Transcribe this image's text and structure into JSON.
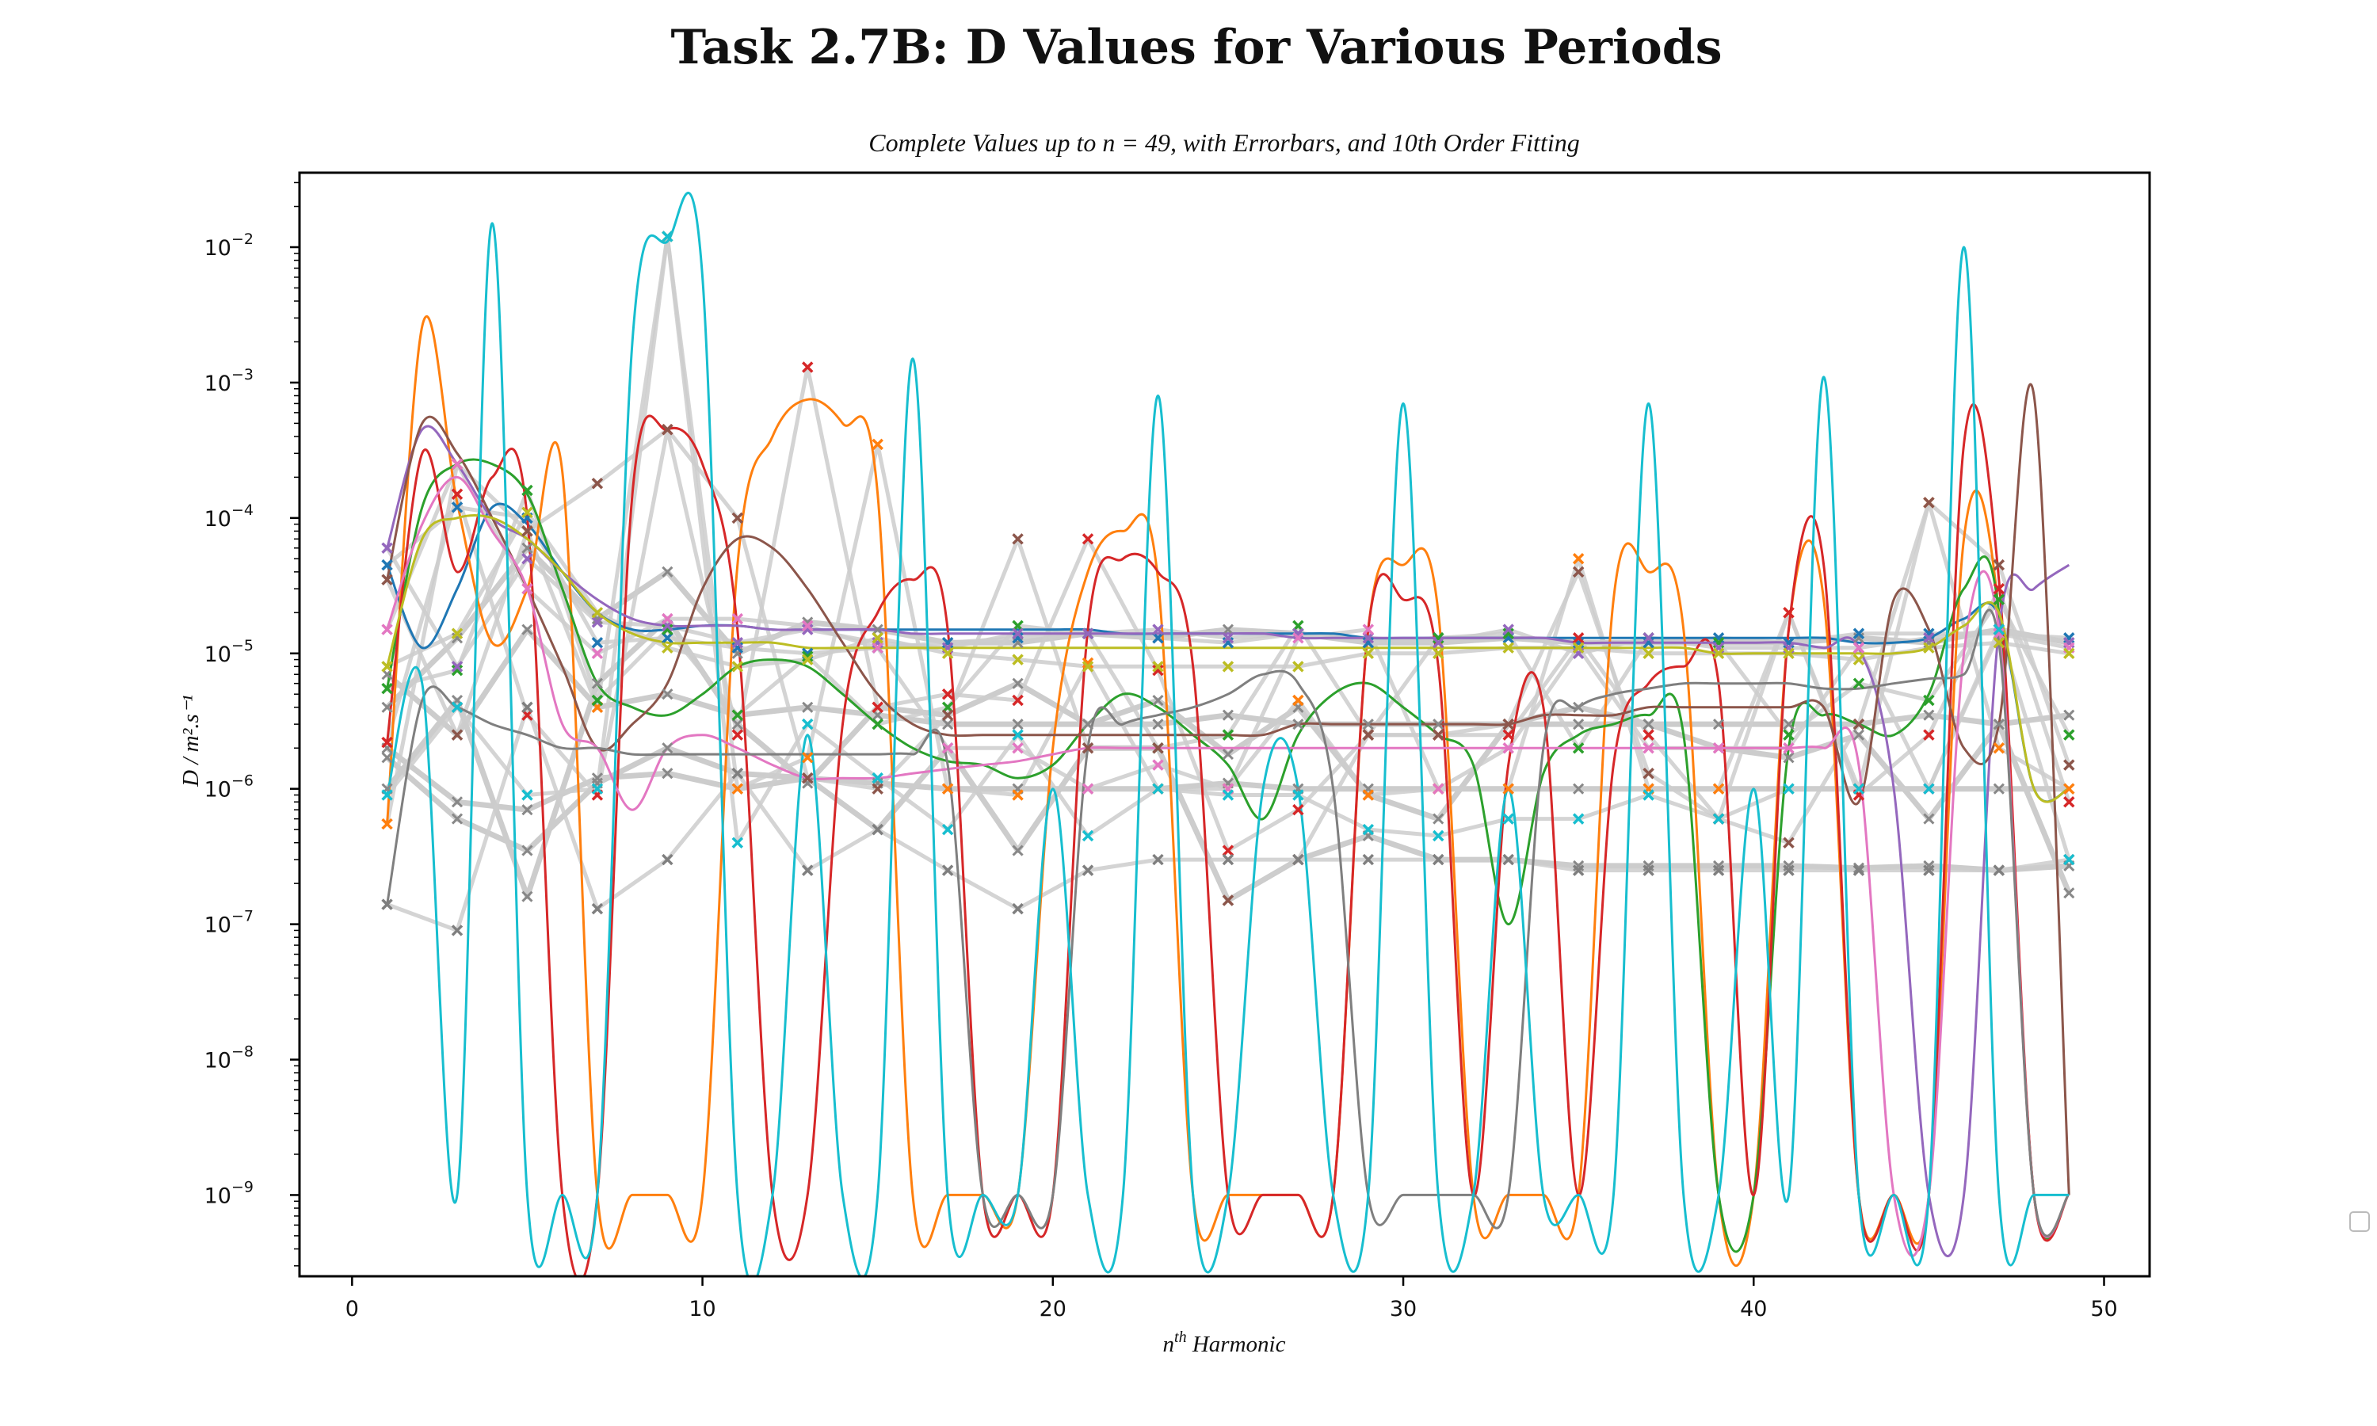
{
  "chart_data": {
    "type": "scatter",
    "title": "Task 2.7B: D Values for Various Periods",
    "subtitle": "Complete Values up to n = 49, with Errorbars, and 10th Order Fitting",
    "xlabel_base": "n",
    "xlabel_sup": "th",
    "xlabel_rest": " Harmonic",
    "ylabel": "D / m².s⁻¹",
    "y_scale": "log",
    "xlim": [
      -1.5,
      51.3
    ],
    "ylim_log10": [
      -9.6,
      -1.45
    ],
    "x_ticks": [
      {
        "value": 0,
        "label": "0"
      },
      {
        "value": 10,
        "label": "10"
      },
      {
        "value": 20,
        "label": "20"
      },
      {
        "value": 30,
        "label": "30"
      },
      {
        "value": 40,
        "label": "40"
      },
      {
        "value": 50,
        "label": "50"
      }
    ],
    "y_ticks": [
      {
        "exp": -9,
        "base": "10",
        "sup": "−9"
      },
      {
        "exp": -8,
        "base": "10",
        "sup": "−8"
      },
      {
        "exp": -7,
        "base": "10",
        "sup": "−7"
      },
      {
        "exp": -6,
        "base": "10",
        "sup": "−6"
      },
      {
        "exp": -5,
        "base": "10",
        "sup": "−5"
      },
      {
        "exp": -4,
        "base": "10",
        "sup": "−4"
      },
      {
        "exp": -3,
        "base": "10",
        "sup": "−3"
      },
      {
        "exp": -2,
        "base": "10",
        "sup": "−2"
      }
    ],
    "legend": "right, empty",
    "grid": false,
    "errorbar_color": "#cccccc",
    "harmonics": [
      1,
      3,
      5,
      7,
      9,
      11,
      13,
      15,
      17,
      19,
      21,
      23,
      25,
      27,
      29,
      31,
      33,
      35,
      37,
      39,
      41,
      43,
      45,
      47,
      49
    ],
    "fit_sample_x": [
      1,
      2,
      3,
      4,
      5,
      6,
      7,
      8,
      9,
      10,
      11,
      12,
      13,
      14,
      15,
      16,
      17,
      18,
      19,
      20,
      21,
      22,
      23,
      24,
      25,
      26,
      27,
      28,
      29,
      30,
      31,
      32,
      33,
      34,
      35,
      36,
      37,
      38,
      39,
      40,
      41,
      42,
      43,
      44,
      45,
      46,
      47,
      48,
      49
    ],
    "series": [
      {
        "color": "#1f77b4",
        "values": [
          4.5e-05,
          0.00012,
          0.0001,
          1.2e-05,
          1.3e-05,
          1.1e-05,
          1e-05,
          1.1e-05,
          1.2e-05,
          1.3e-05,
          1.4e-05,
          1.3e-05,
          1.2e-05,
          1.4e-05,
          1.2e-05,
          1.3e-05,
          1.3e-05,
          1.2e-05,
          1.2e-05,
          1.3e-05,
          1.2e-05,
          1.4e-05,
          1.4e-05,
          1.4e-05,
          1.3e-05
        ],
        "fit": [
          4.5e-05,
          1.1e-05,
          3e-05,
          0.00012,
          9e-05,
          4e-05,
          2e-05,
          1.5e-05,
          1.5e-05,
          1.6e-05,
          1.6e-05,
          1.5e-05,
          1.5e-05,
          1.5e-05,
          1.5e-05,
          1.5e-05,
          1.5e-05,
          1.5e-05,
          1.5e-05,
          1.5e-05,
          1.5e-05,
          1.4e-05,
          1.4e-05,
          1.4e-05,
          1.4e-05,
          1.4e-05,
          1.4e-05,
          1.4e-05,
          1.3e-05,
          1.3e-05,
          1.3e-05,
          1.3e-05,
          1.3e-05,
          1.3e-05,
          1.3e-05,
          1.3e-05,
          1.3e-05,
          1.3e-05,
          1.3e-05,
          1.3e-05,
          1.3e-05,
          1.3e-05,
          1.2e-05,
          1.2e-05,
          1.3e-05,
          1.8e-05,
          1.9e-05,
          1e-06,
          1e-06
        ]
      },
      {
        "color": "#ff7f0e",
        "values": [
          5.5e-07,
          0.00025,
          8e-05,
          4e-06,
          0.012,
          1e-06,
          1.7e-06,
          0.00035,
          1e-06,
          9e-07,
          8.5e-06,
          1e-06,
          1e-06,
          4.5e-06,
          9e-07,
          1e-06,
          1e-06,
          5e-05,
          1e-06,
          1e-06,
          2e-05,
          1e-06,
          0.00013,
          2e-06,
          1e-06
        ],
        "fit": [
          5.5e-07,
          0.0026,
          0.00013,
          1.2e-05,
          3e-05,
          0.00022,
          1e-09,
          1e-09,
          1e-09,
          1e-09,
          4.5e-05,
          0.0004,
          0.00075,
          0.0005,
          0.00015,
          1e-09,
          1e-09,
          1e-09,
          1e-09,
          2e-06,
          4e-05,
          8e-05,
          3.5e-05,
          1e-09,
          1e-09,
          1e-09,
          1e-09,
          1e-09,
          1.5e-05,
          4.5e-05,
          2e-05,
          1e-09,
          1e-09,
          1e-09,
          1e-09,
          2.5e-05,
          4e-05,
          1.5e-05,
          1e-09,
          1e-09,
          1.5e-05,
          2.5e-05,
          1e-09,
          1e-09,
          1e-09,
          7e-05,
          2e-05,
          1e-09,
          1e-09
        ]
      },
      {
        "color": "#2ca02c",
        "values": [
          5.5e-06,
          7.5e-06,
          0.00016,
          4.5e-06,
          1.5e-05,
          3.5e-06,
          9.5e-06,
          3e-06,
          4e-06,
          1.6e-05,
          1.4e-05,
          2e-06,
          2.5e-06,
          1.6e-05,
          2.5e-06,
          1.3e-05,
          1.4e-05,
          2e-06,
          1.3e-05,
          1.2e-05,
          2.5e-06,
          6e-06,
          4.5e-06,
          2.5e-05,
          2.5e-06
        ],
        "fit": [
          5.5e-06,
          0.00012,
          0.00025,
          0.00025,
          0.00015,
          3e-05,
          6e-06,
          4e-06,
          3.5e-06,
          5e-06,
          8e-06,
          9e-06,
          8e-06,
          5e-06,
          3e-06,
          2e-06,
          1.6e-06,
          1.5e-06,
          1.2e-06,
          1.5e-06,
          3e-06,
          5e-06,
          4e-06,
          2.5e-06,
          1.5e-06,
          6e-07,
          2.5e-06,
          5e-06,
          6e-06,
          4e-06,
          2.5e-06,
          1.5e-06,
          1e-07,
          1.3e-06,
          2.5e-06,
          3e-06,
          3.5e-06,
          2.5e-06,
          1e-09,
          1e-09,
          2e-06,
          3.5e-06,
          3e-06,
          2.5e-06,
          5e-06,
          3e-05,
          2e-05,
          1e-09,
          1e-09
        ]
      },
      {
        "color": "#d62728",
        "values": [
          2.2e-06,
          0.00015,
          3.5e-06,
          9e-07,
          0.00045,
          2.5e-06,
          0.0013,
          4e-06,
          5e-06,
          4.5e-06,
          7e-05,
          7.5e-06,
          3.5e-07,
          7e-07,
          2.5e-06,
          2.5e-06,
          2.5e-06,
          1.3e-05,
          2.5e-06,
          6e-07,
          2e-05,
          9e-07,
          2.5e-06,
          3e-05,
          8e-07
        ],
        "fit": [
          2.2e-06,
          0.0003,
          4e-05,
          0.0002,
          0.0001,
          1e-09,
          1e-09,
          0.00015,
          0.00045,
          0.00025,
          1.5e-05,
          1e-09,
          1e-09,
          3e-06,
          2e-05,
          3.5e-05,
          1.5e-05,
          1e-09,
          1e-09,
          1e-09,
          1.5e-05,
          5e-05,
          4e-05,
          8e-06,
          1e-09,
          1e-09,
          1e-09,
          1e-09,
          1.5e-05,
          2.5e-05,
          8e-06,
          1e-09,
          1.5e-06,
          4e-06,
          1e-09,
          1.5e-06,
          6e-06,
          8e-06,
          6e-06,
          1e-09,
          1.5e-05,
          4.5e-05,
          1e-09,
          1e-09,
          1e-09,
          0.00035,
          3.5e-05,
          1e-09,
          1e-09
        ]
      },
      {
        "color": "#9467bd",
        "values": [
          6e-05,
          8e-06,
          5e-05,
          1.7e-05,
          1.6e-05,
          1.2e-05,
          1.5e-05,
          1.2e-05,
          1.1e-05,
          1.4e-05,
          1.4e-05,
          1.5e-05,
          1.3e-05,
          1.4e-05,
          1.3e-05,
          1.2e-05,
          1.5e-05,
          1e-05,
          1.3e-05,
          1.1e-05,
          1.1e-05,
          1.1e-05,
          1.3e-05,
          1.5e-05,
          1.2e-05
        ],
        "fit": [
          6e-05,
          0.00045,
          0.00025,
          0.0001,
          7e-05,
          4e-05,
          2.5e-05,
          1.8e-05,
          1.6e-05,
          1.6e-05,
          1.6e-05,
          1.5e-05,
          1.5e-05,
          1.5e-05,
          1.5e-05,
          1.4e-05,
          1.4e-05,
          1.4e-05,
          1.4e-05,
          1.4e-05,
          1.4e-05,
          1.4e-05,
          1.4e-05,
          1.4e-05,
          1.4e-05,
          1.4e-05,
          1.3e-05,
          1.3e-05,
          1.3e-05,
          1.3e-05,
          1.3e-05,
          1.3e-05,
          1.3e-05,
          1.3e-05,
          1.2e-05,
          1.2e-05,
          1.2e-05,
          1.2e-05,
          1.2e-05,
          1.2e-05,
          1.2e-05,
          1.1e-05,
          1.1e-05,
          1e-06,
          1e-09,
          1e-09,
          1.5e-05,
          3e-05,
          4.5e-05
        ]
      },
      {
        "color": "#8c564b",
        "values": [
          3.5e-05,
          2.5e-06,
          8e-05,
          0.00018,
          0.00045,
          0.0001,
          1.2e-06,
          1e-06,
          3.5e-06,
          7e-05,
          2e-06,
          2e-06,
          1.5e-07,
          3e-07,
          2.5e-06,
          2.5e-06,
          3e-06,
          4e-05,
          1.3e-06,
          6e-07,
          4e-07,
          3e-06,
          0.00013,
          4.5e-05,
          1.5e-06
        ],
        "fit": [
          3.5e-05,
          0.0005,
          0.0003,
          0.0001,
          3e-05,
          8e-06,
          2e-06,
          3e-06,
          6e-06,
          3e-05,
          7e-05,
          6e-05,
          3e-05,
          1.2e-05,
          5e-06,
          3e-06,
          2.5e-06,
          2.5e-06,
          2.5e-06,
          2.5e-06,
          2.5e-06,
          2.5e-06,
          2.5e-06,
          2.5e-06,
          2.5e-06,
          2.5e-06,
          3e-06,
          3e-06,
          3e-06,
          3e-06,
          3e-06,
          3e-06,
          3e-06,
          3.5e-06,
          3.5e-06,
          3.5e-06,
          4e-06,
          4e-06,
          4e-06,
          4e-06,
          4e-06,
          4e-06,
          8e-07,
          2.5e-05,
          1.5e-05,
          2e-06,
          3e-06,
          0.0008,
          1e-09
        ]
      },
      {
        "color": "#e377c2",
        "values": [
          1.5e-05,
          0.00025,
          3e-05,
          1e-05,
          1.8e-05,
          1.8e-05,
          1.6e-05,
          1.1e-05,
          2e-06,
          2e-06,
          1e-06,
          1.5e-06,
          1e-06,
          1.3e-05,
          1.5e-05,
          1e-06,
          2e-06,
          1.1e-05,
          2e-06,
          2e-06,
          2e-06,
          1.1e-05,
          1e-06,
          1.4e-05,
          1.1e-05
        ],
        "fit": [
          1.5e-05,
          9e-05,
          0.0002,
          8e-05,
          3e-05,
          3e-06,
          2e-06,
          7e-07,
          2e-06,
          2.5e-06,
          2e-06,
          1.5e-06,
          1.2e-06,
          1.2e-06,
          1.2e-06,
          1.3e-06,
          1.4e-06,
          1.5e-06,
          1.6e-06,
          1.8e-06,
          2e-06,
          2e-06,
          2e-06,
          2e-06,
          2e-06,
          2e-06,
          2e-06,
          2e-06,
          2e-06,
          2e-06,
          2e-06,
          2e-06,
          2e-06,
          2e-06,
          2e-06,
          2e-06,
          2e-06,
          2e-06,
          2e-06,
          2e-06,
          2e-06,
          2e-06,
          1.5e-06,
          1e-09,
          1e-09,
          1e-05,
          1.5e-05,
          1e-09,
          1e-09
        ]
      },
      {
        "color": "#7f7f7f",
        "values": [
          1.4e-07,
          9e-08,
          4e-06,
          1.3e-07,
          3e-07,
          1.3e-06,
          2.5e-07,
          5e-07,
          2.5e-07,
          1.3e-07,
          2.5e-07,
          3e-07,
          3e-07,
          3e-07,
          3e-07,
          3e-07,
          3e-07,
          2.5e-07,
          2.5e-07,
          2.5e-07,
          2.5e-07,
          2.5e-07,
          2.5e-07,
          2.5e-07,
          3e-07
        ],
        "fit": [
          1.4e-07,
          4.5e-06,
          4e-06,
          3e-06,
          2.5e-06,
          2e-06,
          2e-06,
          1.8e-06,
          1.8e-06,
          1.8e-06,
          1.8e-06,
          1.8e-06,
          1.8e-06,
          1.8e-06,
          1.8e-06,
          1.8e-06,
          1.5e-06,
          1e-09,
          1e-09,
          1e-09,
          2e-06,
          3e-06,
          3.5e-06,
          4e-06,
          5e-06,
          7e-06,
          6e-06,
          1e-06,
          1e-09,
          1e-09,
          1e-09,
          1e-09,
          1e-09,
          2e-06,
          4e-06,
          5e-06,
          5.5e-06,
          6e-06,
          6e-06,
          6e-06,
          6e-06,
          5.5e-06,
          5.5e-06,
          6e-06,
          6.5e-06,
          7e-06,
          1.2e-05,
          1e-09,
          1e-09
        ]
      },
      {
        "color": "#bcbd22",
        "values": [
          8e-06,
          1.4e-05,
          0.00011,
          2e-05,
          1.1e-05,
          8e-06,
          9e-06,
          1.3e-05,
          1e-05,
          9e-06,
          8e-06,
          8e-06,
          8e-06,
          8e-06,
          1e-05,
          1e-05,
          1.1e-05,
          1.1e-05,
          1e-05,
          1e-05,
          1e-05,
          9e-06,
          1.1e-05,
          1.2e-05,
          1e-05
        ],
        "fit": [
          8e-06,
          7e-05,
          0.0001,
          0.0001,
          7e-05,
          4e-05,
          2e-05,
          1.4e-05,
          1.2e-05,
          1.2e-05,
          1.2e-05,
          1.2e-05,
          1.1e-05,
          1.1e-05,
          1.1e-05,
          1.1e-05,
          1.1e-05,
          1.1e-05,
          1.1e-05,
          1.1e-05,
          1.1e-05,
          1.1e-05,
          1.1e-05,
          1.1e-05,
          1.1e-05,
          1.1e-05,
          1.1e-05,
          1.1e-05,
          1.1e-05,
          1.1e-05,
          1.1e-05,
          1.1e-05,
          1.1e-05,
          1.1e-05,
          1.1e-05,
          1.1e-05,
          1.1e-05,
          1.1e-05,
          1e-05,
          1e-05,
          1e-05,
          1e-05,
          1e-05,
          1e-05,
          1.1e-05,
          1.6e-05,
          2e-05,
          1e-06,
          1e-06
        ]
      },
      {
        "color": "#17becf",
        "values": [
          9e-07,
          4e-06,
          9e-07,
          1e-06,
          0.012,
          4e-07,
          3e-06,
          1.2e-06,
          5e-07,
          2.5e-06,
          4.5e-07,
          1e-06,
          9e-07,
          9e-07,
          5e-07,
          4.5e-07,
          6e-07,
          6e-07,
          9e-07,
          6e-07,
          1e-06,
          1e-06,
          1e-06,
          1.5e-05,
          3e-07
        ],
        "fit": [
          9e-07,
          6e-06,
          1e-09,
          0.015,
          1e-09,
          1e-09,
          1e-09,
          0.002,
          0.011,
          0.006,
          1e-09,
          1e-09,
          2.5e-06,
          1e-09,
          1e-09,
          0.0015,
          1e-09,
          1e-09,
          1e-09,
          1e-06,
          1e-09,
          1e-09,
          0.0008,
          1e-09,
          1e-09,
          1e-06,
          1e-06,
          1e-09,
          1e-09,
          0.0007,
          1e-09,
          1e-09,
          1e-06,
          1e-09,
          1e-09,
          1e-09,
          0.0007,
          1e-09,
          1e-09,
          1e-06,
          1e-09,
          0.0011,
          1e-09,
          1e-09,
          1e-09,
          0.01,
          1e-09,
          1e-09,
          1e-09
        ]
      }
    ],
    "grey_values": [
      [
        2e-06,
        8e-07,
        7e-07,
        1.2e-06,
        1.3e-06,
        1e-06,
        1.2e-06,
        1.1e-06,
        1e-06,
        1e-06,
        1e-06,
        1e-06,
        1.1e-06,
        1e-06,
        1e-06,
        1e-06,
        1e-06,
        1e-06,
        1e-06,
        1e-06,
        1e-06,
        1e-06,
        1e-06,
        1e-06,
        1e-06
      ],
      [
        1.7e-06,
        6e-07,
        3.5e-07,
        1.1e-06,
        2e-06,
        1.3e-06,
        1.2e-06,
        5e-07,
        2e-06,
        3.5e-07,
        2e-06,
        2e-06,
        1.5e-07,
        3e-07,
        4.5e-07,
        3e-07,
        3e-07,
        2.7e-07,
        2.7e-07,
        2.7e-07,
        2.7e-07,
        2.6e-07,
        2.7e-07,
        2.5e-07,
        2.7e-07
      ],
      [
        1e-06,
        4.5e-06,
        1.6e-07,
        6e-06,
        1.8e-05,
        3e-06,
        1.1e-06,
        4e-06,
        3.5e-06,
        6e-06,
        3e-06,
        4.5e-06,
        1.8e-06,
        4e-06,
        9e-07,
        6e-07,
        3e-06,
        4e-06,
        3e-06,
        2e-06,
        1.7e-06,
        2.5e-06,
        6e-07,
        3e-06,
        1.7e-07
      ],
      [
        4e-06,
        1.3e-05,
        6e-05,
        1.8e-05,
        4e-05,
        1e-05,
        1.7e-05,
        1.5e-05,
        1.2e-05,
        1.2e-05,
        1.4e-05,
        1.3e-05,
        1.5e-05,
        1.4e-05,
        1.2e-05,
        1.2e-05,
        1.3e-05,
        1.2e-05,
        1.2e-05,
        1.2e-05,
        1.2e-05,
        1.3e-05,
        1.2e-05,
        1.5e-05,
        1.2e-05
      ],
      [
        7e-06,
        2.5e-06,
        1.5e-05,
        4e-06,
        5e-06,
        3.5e-06,
        4e-06,
        3.5e-06,
        3e-06,
        3e-06,
        3e-06,
        3e-06,
        3.5e-06,
        3e-06,
        3e-06,
        3e-06,
        3e-06,
        3e-06,
        3e-06,
        3e-06,
        3e-06,
        3e-06,
        3.5e-06,
        3e-06,
        3.5e-06
      ]
    ]
  }
}
